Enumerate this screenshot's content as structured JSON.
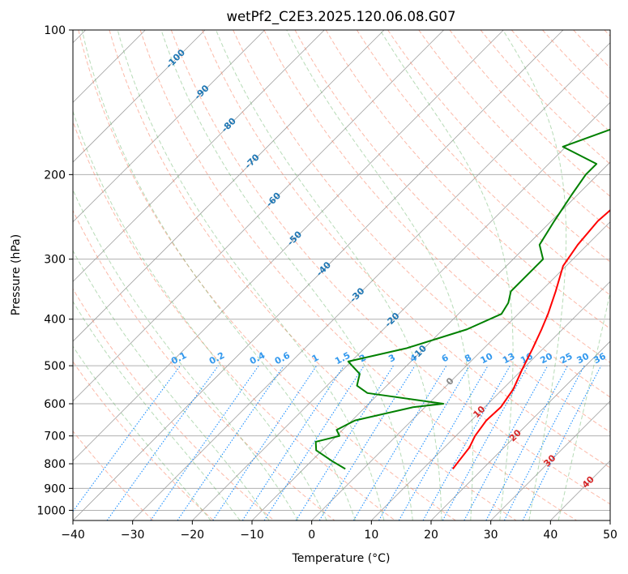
{
  "chart_data": {
    "type": "line",
    "subtype": "skew-t log-p diagram",
    "title": "wetPf2_C2E3.2025.120.06.08.G07",
    "xlabel": "Temperature (°C)",
    "ylabel": "Pressure (hPa)",
    "xlim": [
      -40,
      50
    ],
    "ylim": [
      1050,
      100
    ],
    "y_scale": "log",
    "grid": true,
    "x_ticks": [
      -40,
      -30,
      -20,
      -10,
      0,
      10,
      20,
      30,
      40,
      50
    ],
    "y_ticks": [
      100,
      200,
      300,
      400,
      500,
      600,
      700,
      800,
      900,
      1000
    ],
    "colors": {
      "temperature": "#ff0000",
      "dewpoint": "#008000",
      "isotherm": "#999999",
      "dry_adiabat": "#fa8060",
      "moist_adiabat": "#60b060",
      "mixing_ratio": "#1e90ff",
      "label_blue": "#1f77b4",
      "label_red": "#d62728"
    },
    "series": [
      {
        "key": "temperature",
        "x": [
          15.0,
          14.7,
          14.2,
          13.2,
          12.5,
          12.7,
          11.8,
          10.0,
          8.2,
          6.5,
          5.0,
          2.5,
          -0.5,
          -1.6,
          -2.2,
          -1.6,
          -1.0,
          0.5,
          2.0,
          4.5,
          7.0
        ],
        "y": [
          820,
          790,
          740,
          700,
          650,
          610,
          560,
          510,
          460,
          420,
          390,
          350,
          310,
          280,
          250,
          220,
          200,
          180,
          160,
          130,
          100
        ]
      },
      {
        "key": "dewpoint",
        "x": [
          -3.0,
          -6.5,
          -11.0,
          -12.5,
          -9.5,
          -11.0,
          -9.5,
          -2.0,
          2.5,
          -12.0,
          -15.0,
          -16.5,
          -20.5,
          -13.0,
          -6.0,
          -2.8,
          -3.5,
          -5.0,
          -5.0,
          -5.0,
          -8.0,
          -9.5,
          -11.0,
          -12.0,
          -12.0,
          -20.5,
          -15.0,
          -13.0,
          -14.0,
          -5.0,
          4.0
        ],
        "y": [
          820,
          790,
          750,
          720,
          700,
          680,
          650,
          610,
          600,
          570,
          550,
          520,
          490,
          460,
          420,
          390,
          370,
          350,
          330,
          300,
          280,
          250,
          220,
          200,
          190,
          175,
          160,
          140,
          130,
          115,
          100
        ]
      }
    ],
    "isotherm_labels": [
      "-100",
      "-90",
      "-80",
      "-70",
      "-60",
      "-50",
      "-40",
      "-30",
      "-20",
      "-10",
      "0",
      "10",
      "20",
      "30",
      "40"
    ],
    "mixing_ratio_labels": [
      "0.1",
      "0.2",
      "0.4",
      "0.6",
      "1",
      "1.5",
      "2",
      "3",
      "4",
      "6",
      "8",
      "10",
      "13",
      "16",
      "20",
      "25",
      "30",
      "36"
    ],
    "mixing_ratio_values": [
      0.1,
      0.2,
      0.4,
      0.6,
      1,
      1.5,
      2,
      3,
      4,
      6,
      8,
      10,
      13,
      16,
      20,
      25,
      30,
      36
    ]
  }
}
